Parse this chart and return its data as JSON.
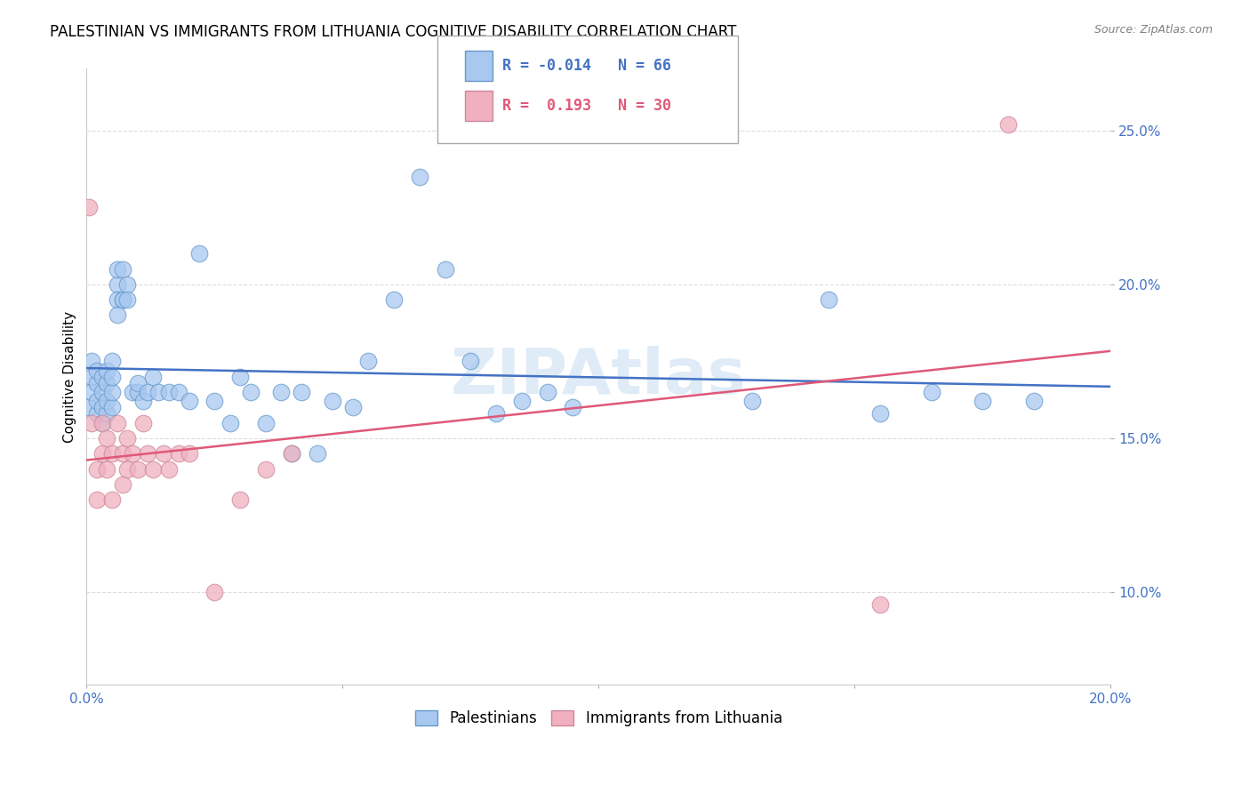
{
  "title": "PALESTINIAN VS IMMIGRANTS FROM LITHUANIA COGNITIVE DISABILITY CORRELATION CHART",
  "source": "Source: ZipAtlas.com",
  "ylabel": "Cognitive Disability",
  "watermark": "ZIPAtlas",
  "r_blue": -0.014,
  "n_blue": 66,
  "r_pink": 0.193,
  "n_pink": 30,
  "xlim": [
    0.0,
    0.2
  ],
  "ylim": [
    0.07,
    0.27
  ],
  "xticks": [
    0.0,
    0.05,
    0.1,
    0.15,
    0.2
  ],
  "xtick_labels_bottom": [
    "0.0%",
    "",
    "",
    "",
    "20.0%"
  ],
  "yticks": [
    0.1,
    0.15,
    0.2,
    0.25
  ],
  "ytick_labels": [
    "10.0%",
    "15.0%",
    "20.0%",
    "25.0%"
  ],
  "color_blue": "#a8c8f0",
  "color_blue_edge": "#6699cc",
  "color_blue_line": "#4472c4",
  "color_pink": "#f0b0c0",
  "color_pink_edge": "#cc8899",
  "color_pink_line": "#e05878",
  "legend_label_blue": "Palestinians",
  "legend_label_pink": "Immigrants from Lithuania",
  "blue_x": [
    0.0005,
    0.001,
    0.001,
    0.001,
    0.002,
    0.002,
    0.002,
    0.002,
    0.003,
    0.003,
    0.003,
    0.003,
    0.004,
    0.004,
    0.004,
    0.004,
    0.005,
    0.005,
    0.005,
    0.005,
    0.006,
    0.006,
    0.006,
    0.006,
    0.007,
    0.007,
    0.007,
    0.008,
    0.008,
    0.009,
    0.01,
    0.01,
    0.011,
    0.012,
    0.013,
    0.014,
    0.016,
    0.018,
    0.02,
    0.022,
    0.025,
    0.028,
    0.03,
    0.032,
    0.035,
    0.038,
    0.04,
    0.042,
    0.045,
    0.048,
    0.052,
    0.055,
    0.06,
    0.065,
    0.07,
    0.075,
    0.08,
    0.085,
    0.09,
    0.095,
    0.13,
    0.145,
    0.155,
    0.165,
    0.175,
    0.185
  ],
  "blue_y": [
    0.16,
    0.17,
    0.165,
    0.175,
    0.158,
    0.162,
    0.168,
    0.172,
    0.155,
    0.16,
    0.165,
    0.17,
    0.158,
    0.162,
    0.168,
    0.172,
    0.16,
    0.165,
    0.17,
    0.175,
    0.2,
    0.195,
    0.205,
    0.19,
    0.195,
    0.205,
    0.195,
    0.2,
    0.195,
    0.165,
    0.165,
    0.168,
    0.162,
    0.165,
    0.17,
    0.165,
    0.165,
    0.165,
    0.162,
    0.21,
    0.162,
    0.155,
    0.17,
    0.165,
    0.155,
    0.165,
    0.145,
    0.165,
    0.145,
    0.162,
    0.16,
    0.175,
    0.195,
    0.235,
    0.205,
    0.175,
    0.158,
    0.162,
    0.165,
    0.16,
    0.162,
    0.195,
    0.158,
    0.165,
    0.162,
    0.162
  ],
  "pink_x": [
    0.0005,
    0.001,
    0.002,
    0.002,
    0.003,
    0.003,
    0.004,
    0.004,
    0.005,
    0.005,
    0.006,
    0.007,
    0.007,
    0.008,
    0.008,
    0.009,
    0.01,
    0.011,
    0.012,
    0.013,
    0.015,
    0.016,
    0.018,
    0.02,
    0.025,
    0.03,
    0.035,
    0.04,
    0.155,
    0.18
  ],
  "pink_y": [
    0.225,
    0.155,
    0.14,
    0.13,
    0.155,
    0.145,
    0.15,
    0.14,
    0.145,
    0.13,
    0.155,
    0.145,
    0.135,
    0.15,
    0.14,
    0.145,
    0.14,
    0.155,
    0.145,
    0.14,
    0.145,
    0.14,
    0.145,
    0.145,
    0.1,
    0.13,
    0.14,
    0.145,
    0.096,
    0.252
  ],
  "dot_size": 180,
  "background_color": "#ffffff",
  "grid_color": "#dddddd",
  "title_fontsize": 12,
  "axis_fontsize": 11,
  "tick_fontsize": 11,
  "legend_fontsize": 12
}
